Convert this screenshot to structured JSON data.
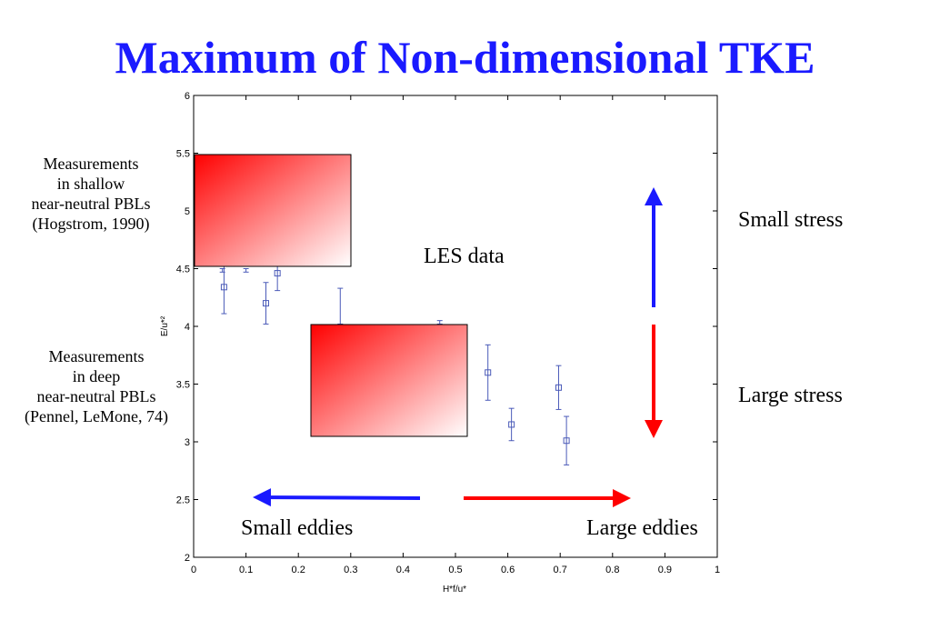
{
  "title": "Maximum of Non-dimensional TKE",
  "annotations": {
    "shallow": [
      "Measurements",
      "in shallow",
      "near-neutral PBLs",
      "(Hogstrom, 1990)"
    ],
    "deep": [
      "Measurements",
      "in deep",
      "near-neutral PBLs",
      "(Pennel, LeMone, 74)"
    ],
    "les_data": "LES data",
    "small_stress": "Small stress",
    "large_stress": "Large stress",
    "small_eddies": "Small eddies",
    "large_eddies": "Large eddies"
  },
  "colors": {
    "title": "#1a1aff",
    "series": "#4a5ab8",
    "blue_arrow": "#1a1aff",
    "red_arrow": "#ff0000",
    "box_gradient_start": "#ff0000",
    "box_gradient_end": "#ffffff"
  },
  "chart_data": {
    "type": "scatter",
    "xlabel": "H*f/u*",
    "ylabel": "E/u*²",
    "xlim": [
      0,
      1
    ],
    "ylim": [
      2,
      6
    ],
    "xticks": [
      "0",
      "0.1",
      "0.2",
      "0.3",
      "0.4",
      "0.5",
      "0.6",
      "0.7",
      "0.8",
      "0.9",
      "1"
    ],
    "yticks": [
      "2",
      "2.5",
      "3",
      "3.5",
      "4",
      "4.5",
      "5",
      "5.5",
      "6"
    ],
    "grid": false,
    "series": [
      {
        "marker": "square",
        "error_bars": true,
        "points": [
          {
            "x": 0.058,
            "y": 4.34,
            "err": 0.23
          },
          {
            "x": 0.138,
            "y": 4.2,
            "err": 0.18
          },
          {
            "x": 0.16,
            "y": 4.46,
            "err": 0.15
          },
          {
            "x": 0.562,
            "y": 3.6,
            "err": 0.24
          },
          {
            "x": 0.607,
            "y": 3.15,
            "err": 0.14
          },
          {
            "x": 0.697,
            "y": 3.47,
            "err": 0.19
          },
          {
            "x": 0.712,
            "y": 3.01,
            "err": 0.21
          }
        ],
        "partial_error_bars": [
          {
            "x": 0.1,
            "y_low": 4.47,
            "y_high": 4.5
          },
          {
            "x": 0.055,
            "y_low": 4.47,
            "y_high": 4.5
          },
          {
            "x": 0.28,
            "y_low": 4.02,
            "y_high": 4.33
          },
          {
            "x": 0.47,
            "y_low": 4.02,
            "y_high": 4.05
          }
        ]
      }
    ]
  }
}
